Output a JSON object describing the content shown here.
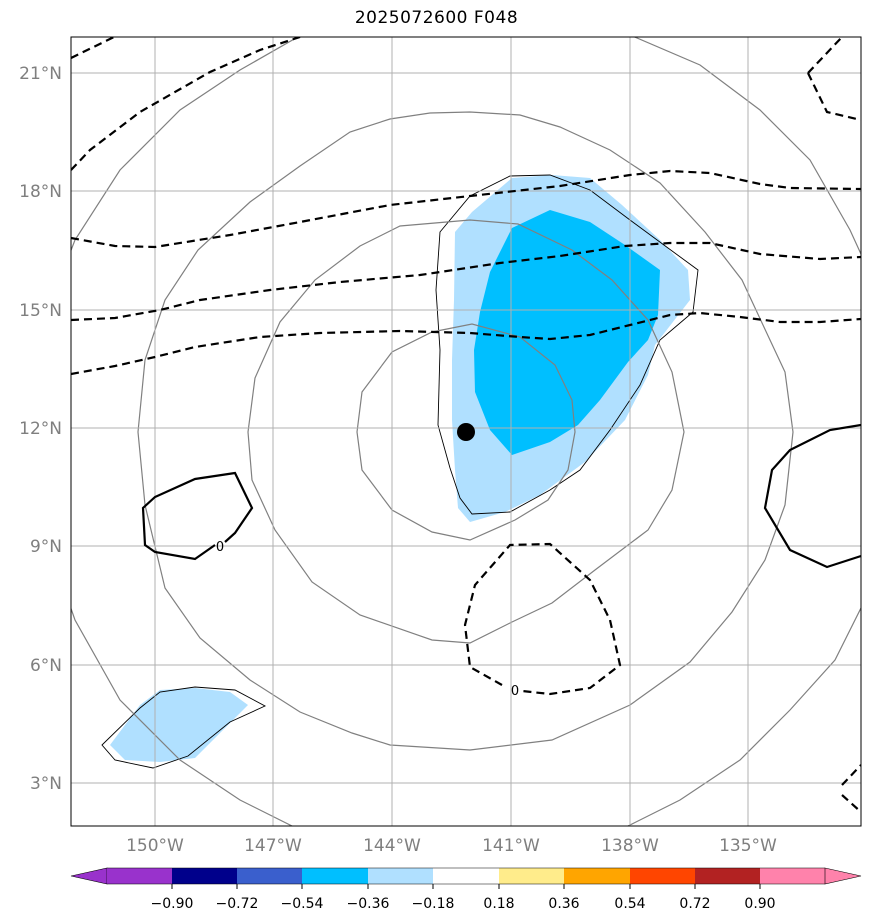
{
  "title": "2025072600 F048",
  "map": {
    "lat_labels": [
      "21°N",
      "18°N",
      "15°N",
      "12°N",
      "9°N",
      "6°N",
      "3°N"
    ],
    "lon_labels": [
      "150°W",
      "147°W",
      "144°W",
      "141°W",
      "138°W",
      "135°W"
    ],
    "center_marker": {
      "lat": 11.9,
      "lon": "142.2°W"
    }
  },
  "contour_labels": [
    "0",
    "0"
  ],
  "colorbar": {
    "ticks": [
      "−0.90",
      "−0.72",
      "−0.54",
      "−0.36",
      "−0.18",
      "0.18",
      "0.36",
      "0.54",
      "0.72",
      "0.90"
    ],
    "colors": [
      "#9932cc",
      "#00008b",
      "#3a5fcd",
      "#00bfff",
      "#b0e0ff",
      "#ffffff",
      "#ffec8b",
      "#ffa500",
      "#ff4500",
      "#b22222",
      "#ff82ab"
    ]
  }
}
